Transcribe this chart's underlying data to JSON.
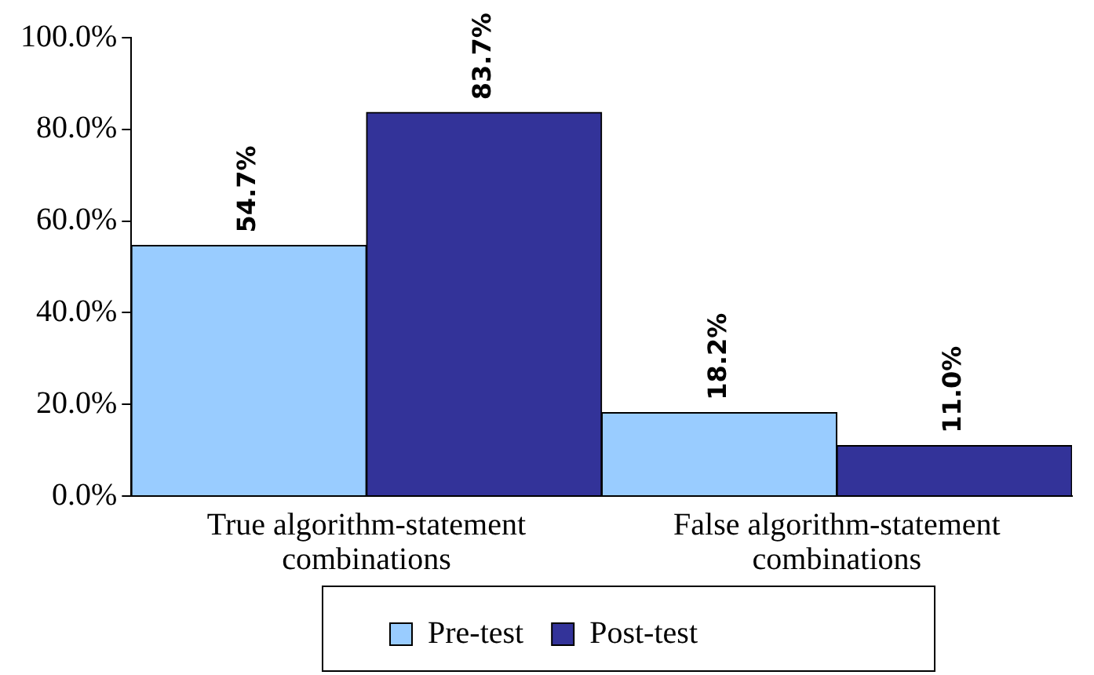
{
  "chart_data": {
    "type": "bar",
    "categories": [
      "True algorithm-statement combinations",
      "False algorithm-statement combinations"
    ],
    "series": [
      {
        "name": "Pre-test",
        "color": "#99ccff",
        "values": [
          54.7,
          18.2
        ],
        "value_labels": [
          "54.7%",
          "18.2%"
        ]
      },
      {
        "name": "Post-test",
        "color": "#333399",
        "values": [
          83.7,
          11.0
        ],
        "value_labels": [
          "83.7%",
          "11.0%"
        ]
      }
    ],
    "ylim": [
      0,
      100
    ],
    "yticks": [
      {
        "value": 0,
        "label": "0.0%"
      },
      {
        "value": 20,
        "label": "20.0%"
      },
      {
        "value": 40,
        "label": "40.0%"
      },
      {
        "value": 60,
        "label": "60.0%"
      },
      {
        "value": 80,
        "label": "80.0%"
      },
      {
        "value": 100,
        "label": "100.0%"
      }
    ],
    "grid": false,
    "legend": "bottom"
  }
}
